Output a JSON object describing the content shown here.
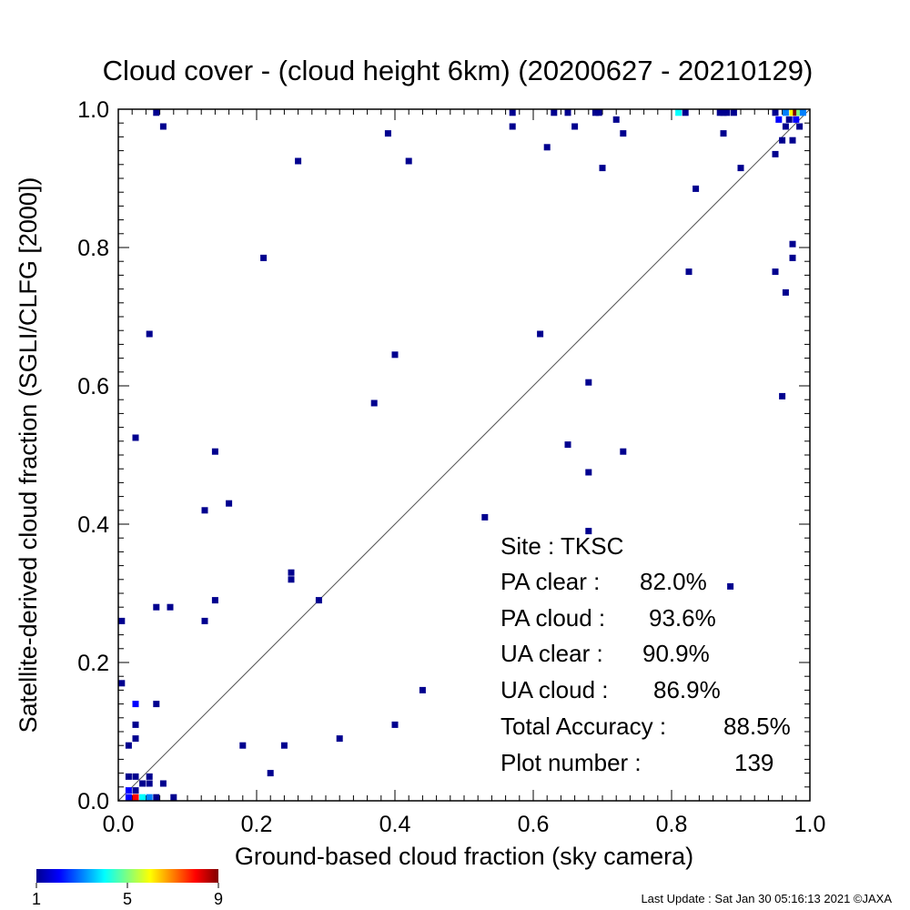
{
  "chart_data": {
    "type": "heatmap",
    "title": "Cloud cover - (cloud height 6km)  (20200627 - 20210129)",
    "xlabel": "Ground-based cloud fraction (sky camera)",
    "ylabel": "Satellite-derived cloud fraction (SGLI/CLFG [2000])",
    "xlim": [
      0,
      1
    ],
    "ylim": [
      0,
      1
    ],
    "xticks": [
      "0.0",
      "0.2",
      "0.4",
      "0.6",
      "0.8",
      "1.0"
    ],
    "yticks": [
      "0.0",
      "0.2",
      "0.4",
      "0.6",
      "0.8",
      "1.0"
    ],
    "reference_line": "1:1 diagonal",
    "colorbar": {
      "min_label": "1",
      "mid_label": "5",
      "max_label": "9",
      "min": 1,
      "max": 9
    },
    "points": [
      {
        "x": 0.055,
        "y": 0.995,
        "count": 1
      },
      {
        "x": 0.065,
        "y": 0.975,
        "count": 1
      },
      {
        "x": 0.39,
        "y": 0.965,
        "count": 1
      },
      {
        "x": 0.26,
        "y": 0.925,
        "count": 1
      },
      {
        "x": 0.42,
        "y": 0.925,
        "count": 1
      },
      {
        "x": 0.57,
        "y": 0.995,
        "count": 1
      },
      {
        "x": 0.57,
        "y": 0.975,
        "count": 1
      },
      {
        "x": 0.63,
        "y": 0.995,
        "count": 1
      },
      {
        "x": 0.65,
        "y": 0.995,
        "count": 1
      },
      {
        "x": 0.66,
        "y": 0.975,
        "count": 1
      },
      {
        "x": 0.62,
        "y": 0.945,
        "count": 1
      },
      {
        "x": 0.69,
        "y": 0.995,
        "count": 1
      },
      {
        "x": 0.695,
        "y": 0.995,
        "count": 1
      },
      {
        "x": 0.72,
        "y": 0.985,
        "count": 1
      },
      {
        "x": 0.73,
        "y": 0.965,
        "count": 1
      },
      {
        "x": 0.7,
        "y": 0.915,
        "count": 1
      },
      {
        "x": 0.81,
        "y": 0.995,
        "count": 4
      },
      {
        "x": 0.82,
        "y": 0.995,
        "count": 1
      },
      {
        "x": 0.87,
        "y": 0.995,
        "count": 1
      },
      {
        "x": 0.875,
        "y": 0.995,
        "count": 1
      },
      {
        "x": 0.88,
        "y": 0.995,
        "count": 1
      },
      {
        "x": 0.89,
        "y": 0.995,
        "count": 1
      },
      {
        "x": 0.875,
        "y": 0.965,
        "count": 1
      },
      {
        "x": 0.835,
        "y": 0.885,
        "count": 1
      },
      {
        "x": 0.9,
        "y": 0.915,
        "count": 1
      },
      {
        "x": 0.95,
        "y": 0.995,
        "count": 1
      },
      {
        "x": 0.955,
        "y": 0.985,
        "count": 2
      },
      {
        "x": 0.965,
        "y": 0.995,
        "count": 3
      },
      {
        "x": 0.97,
        "y": 0.985,
        "count": 1
      },
      {
        "x": 0.975,
        "y": 0.995,
        "count": 6
      },
      {
        "x": 0.98,
        "y": 0.995,
        "count": 9
      },
      {
        "x": 0.985,
        "y": 0.995,
        "count": 5
      },
      {
        "x": 0.99,
        "y": 0.995,
        "count": 3
      },
      {
        "x": 0.98,
        "y": 0.985,
        "count": 2
      },
      {
        "x": 0.965,
        "y": 0.975,
        "count": 1
      },
      {
        "x": 0.96,
        "y": 0.955,
        "count": 1
      },
      {
        "x": 0.975,
        "y": 0.955,
        "count": 1
      },
      {
        "x": 0.95,
        "y": 0.935,
        "count": 1
      },
      {
        "x": 0.985,
        "y": 0.975,
        "count": 1
      },
      {
        "x": 0.21,
        "y": 0.785,
        "count": 1
      },
      {
        "x": 0.045,
        "y": 0.675,
        "count": 1
      },
      {
        "x": 0.4,
        "y": 0.645,
        "count": 1
      },
      {
        "x": 0.37,
        "y": 0.575,
        "count": 1
      },
      {
        "x": 0.61,
        "y": 0.675,
        "count": 1
      },
      {
        "x": 0.68,
        "y": 0.605,
        "count": 1
      },
      {
        "x": 0.65,
        "y": 0.515,
        "count": 1
      },
      {
        "x": 0.73,
        "y": 0.505,
        "count": 1
      },
      {
        "x": 0.68,
        "y": 0.475,
        "count": 1
      },
      {
        "x": 0.53,
        "y": 0.41,
        "count": 1
      },
      {
        "x": 0.68,
        "y": 0.39,
        "count": 1
      },
      {
        "x": 0.885,
        "y": 0.31,
        "count": 1
      },
      {
        "x": 0.825,
        "y": 0.765,
        "count": 1
      },
      {
        "x": 0.95,
        "y": 0.765,
        "count": 1
      },
      {
        "x": 0.965,
        "y": 0.735,
        "count": 1
      },
      {
        "x": 0.975,
        "y": 0.785,
        "count": 1
      },
      {
        "x": 0.975,
        "y": 0.805,
        "count": 1
      },
      {
        "x": 0.96,
        "y": 0.585,
        "count": 1
      },
      {
        "x": 0.025,
        "y": 0.525,
        "count": 1
      },
      {
        "x": 0.14,
        "y": 0.505,
        "count": 1
      },
      {
        "x": 0.16,
        "y": 0.43,
        "count": 1
      },
      {
        "x": 0.125,
        "y": 0.42,
        "count": 1
      },
      {
        "x": 0.25,
        "y": 0.33,
        "count": 1
      },
      {
        "x": 0.25,
        "y": 0.32,
        "count": 1
      },
      {
        "x": 0.29,
        "y": 0.29,
        "count": 1
      },
      {
        "x": 0.14,
        "y": 0.29,
        "count": 1
      },
      {
        "x": 0.055,
        "y": 0.28,
        "count": 1
      },
      {
        "x": 0.075,
        "y": 0.28,
        "count": 1
      },
      {
        "x": 0.125,
        "y": 0.26,
        "count": 1
      },
      {
        "x": 0.005,
        "y": 0.26,
        "count": 1
      },
      {
        "x": 0.005,
        "y": 0.17,
        "count": 1
      },
      {
        "x": 0.025,
        "y": 0.14,
        "count": 2
      },
      {
        "x": 0.055,
        "y": 0.14,
        "count": 1
      },
      {
        "x": 0.44,
        "y": 0.16,
        "count": 1
      },
      {
        "x": 0.025,
        "y": 0.11,
        "count": 1
      },
      {
        "x": 0.025,
        "y": 0.09,
        "count": 1
      },
      {
        "x": 0.4,
        "y": 0.11,
        "count": 1
      },
      {
        "x": 0.32,
        "y": 0.09,
        "count": 1
      },
      {
        "x": 0.015,
        "y": 0.08,
        "count": 1
      },
      {
        "x": 0.18,
        "y": 0.08,
        "count": 1
      },
      {
        "x": 0.24,
        "y": 0.08,
        "count": 1
      },
      {
        "x": 0.22,
        "y": 0.04,
        "count": 1
      },
      {
        "x": 0.015,
        "y": 0.035,
        "count": 1
      },
      {
        "x": 0.025,
        "y": 0.035,
        "count": 1
      },
      {
        "x": 0.045,
        "y": 0.035,
        "count": 1
      },
      {
        "x": 0.035,
        "y": 0.025,
        "count": 1
      },
      {
        "x": 0.045,
        "y": 0.025,
        "count": 1
      },
      {
        "x": 0.065,
        "y": 0.025,
        "count": 1
      },
      {
        "x": 0.015,
        "y": 0.015,
        "count": 2
      },
      {
        "x": 0.025,
        "y": 0.015,
        "count": 1
      },
      {
        "x": 0.015,
        "y": 0.005,
        "count": 2
      },
      {
        "x": 0.025,
        "y": 0.005,
        "count": 8
      },
      {
        "x": 0.035,
        "y": 0.005,
        "count": 4
      },
      {
        "x": 0.045,
        "y": 0.005,
        "count": 3
      },
      {
        "x": 0.055,
        "y": 0.005,
        "count": 1
      },
      {
        "x": 0.08,
        "y": 0.005,
        "count": 1
      }
    ]
  },
  "stats": {
    "site_label": "Site : TKSC",
    "pa_clear_label": "PA clear :",
    "pa_clear_value": "82.0%",
    "pa_cloud_label": "PA cloud :",
    "pa_cloud_value": "93.6%",
    "ua_clear_label": "UA clear :",
    "ua_clear_value": "90.9%",
    "ua_cloud_label": "UA cloud :",
    "ua_cloud_value": "86.9%",
    "total_label": "Total Accuracy :",
    "total_value": "88.5%",
    "plot_number_label": "Plot number :",
    "plot_number_value": "139"
  },
  "footer": {
    "last_update": "Last Update : Sat Jan 30 05:16:13 2021  ©JAXA"
  }
}
